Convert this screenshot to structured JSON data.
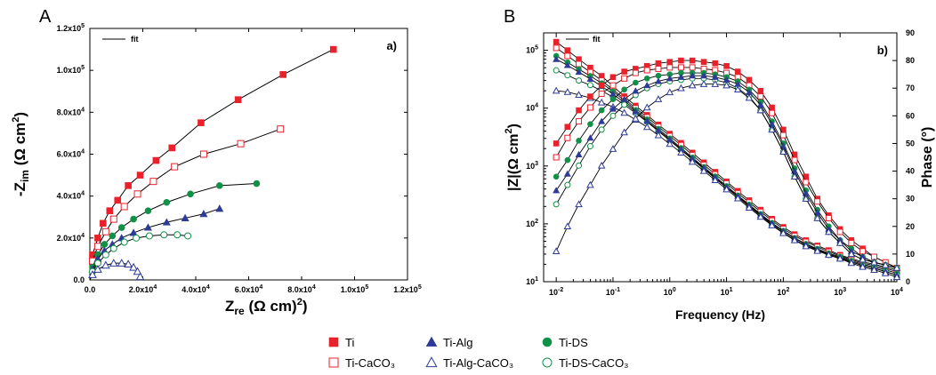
{
  "panel_letters": [
    "A",
    "B"
  ],
  "legend": {
    "items": [
      {
        "label": "Ti",
        "marker": "square",
        "filled": true,
        "color": "#e8212b"
      },
      {
        "label": "Ti-Alg",
        "marker": "triangle",
        "filled": true,
        "color": "#2e3a97"
      },
      {
        "label": "Ti-DS",
        "marker": "circle",
        "filled": true,
        "color": "#119148"
      },
      {
        "label": "Ti-CaCO₃",
        "marker": "square",
        "filled": false,
        "color": "#e8212b"
      },
      {
        "label": "Ti-Alg-CaCO₃",
        "marker": "triangle",
        "filled": false,
        "color": "#2e3a97"
      },
      {
        "label": "Ti-DS-CaCO₃",
        "marker": "circle",
        "filled": false,
        "color": "#119148"
      }
    ]
  },
  "chart_data": [
    {
      "type": "scatter",
      "panel_label": "a)",
      "fit_label": "fit",
      "xlabel": "Zre (Ω cm²)",
      "ylabel": "-Zim (Ω cm²)",
      "xlim": [
        0,
        120000
      ],
      "ylim": [
        0,
        120000
      ],
      "x_ticks": [
        "0.0",
        "2.0x10⁴",
        "4.0x10⁴",
        "6.0x10⁴",
        "8.0x10⁴",
        "1.0x10⁵",
        "1.2x10⁵"
      ],
      "y_ticks": [
        "0.0",
        "2.0x10⁴",
        "4.0x10⁴",
        "6.0x10⁴",
        "8.0x10⁴",
        "1.0x10⁵",
        "1.2x10⁵"
      ],
      "series": [
        {
          "name": "Ti",
          "x": [
            1000,
            3000,
            5000,
            7500,
            10500,
            14500,
            19000,
            25000,
            31000,
            42000,
            56000,
            73000,
            92000
          ],
          "y": [
            12000,
            20000,
            27000,
            33000,
            38000,
            45000,
            50000,
            57000,
            63000,
            75000,
            86000,
            98000,
            110000
          ]
        },
        {
          "name": "Ti-CaCO₃",
          "x": [
            1000,
            3000,
            6000,
            9000,
            13000,
            18000,
            24000,
            32000,
            43000,
            57000,
            72000
          ],
          "y": [
            9000,
            16000,
            23000,
            29000,
            35000,
            41000,
            47000,
            54000,
            60000,
            65000,
            72000
          ]
        },
        {
          "name": "Ti-DS",
          "x": [
            1000,
            3000,
            5500,
            8500,
            12000,
            16500,
            22000,
            29000,
            38000,
            49000,
            63000
          ],
          "y": [
            6000,
            12000,
            17000,
            21000,
            25000,
            29000,
            33000,
            37000,
            41000,
            45000,
            46000
          ]
        },
        {
          "name": "Ti-Alg",
          "x": [
            1000,
            3000,
            5500,
            8500,
            12000,
            16500,
            22000,
            29000,
            36000,
            43000,
            49000
          ],
          "y": [
            5000,
            10000,
            14000,
            17000,
            20000,
            22500,
            25000,
            27500,
            29500,
            31500,
            34000
          ]
        },
        {
          "name": "Ti-DS-CaCO₃",
          "x": [
            1000,
            3000,
            6000,
            9000,
            13000,
            17500,
            22500,
            28000,
            33000,
            37000
          ],
          "y": [
            4000,
            8000,
            12000,
            15000,
            18000,
            20000,
            21000,
            21500,
            21500,
            21000
          ]
        },
        {
          "name": "Ti-Alg-CaCO₃",
          "x": [
            1000,
            3000,
            6000,
            9000,
            12000,
            14500,
            16500,
            18000,
            19000
          ],
          "y": [
            2500,
            5000,
            7000,
            8000,
            8000,
            7500,
            6000,
            4000,
            1500
          ]
        }
      ]
    },
    {
      "type": "scatter",
      "panel_label": "b)",
      "fit_label": "fit",
      "xlabel": "Frequency (Hz)",
      "ylabel": "|Z|(Ω cm²)",
      "ylabel_right": "Phase (°)",
      "x_scale": "log",
      "y_scale": "log",
      "xlim": [
        0.006,
        10000
      ],
      "ylim": [
        10,
        200000
      ],
      "ylim_right": [
        0,
        90
      ],
      "x_ticks": [
        "10⁻²",
        "10⁻¹",
        "10⁰",
        "10¹",
        "10²",
        "10³",
        "10⁴"
      ],
      "y_ticks": [
        "10¹",
        "10²",
        "10³",
        "10⁴",
        "10⁵"
      ],
      "y_ticks_right": [
        "0",
        "10",
        "20",
        "30",
        "40",
        "50",
        "60",
        "70",
        "80",
        "90"
      ],
      "frequency": [
        0.01,
        0.0158,
        0.025,
        0.0398,
        0.063,
        0.1,
        0.158,
        0.25,
        0.398,
        0.63,
        1,
        1.58,
        2.5,
        3.98,
        6.3,
        10,
        15.8,
        25,
        39.8,
        63,
        100,
        158,
        250,
        398,
        630,
        1000,
        1580,
        2500,
        3980,
        6300,
        10000
      ],
      "modulus_series": [
        {
          "name": "Ti",
          "values": [
            140000,
            100000,
            70000,
            50000,
            36000,
            24000,
            16000,
            11000,
            7600,
            5200,
            3600,
            2500,
            1700,
            1150,
            790,
            540,
            370,
            255,
            175,
            122,
            88,
            66,
            52,
            42,
            35,
            29,
            25,
            22,
            20,
            18,
            16
          ]
        },
        {
          "name": "Ti-CaCO₃",
          "values": [
            110000,
            80000,
            58000,
            42000,
            30000,
            21000,
            14500,
            10000,
            7000,
            4800,
            3300,
            2300,
            1550,
            1050,
            720,
            500,
            340,
            235,
            162,
            114,
            82,
            62,
            49,
            40,
            33,
            28,
            24,
            21,
            19,
            17,
            15
          ]
        },
        {
          "name": "Ti-DS",
          "values": [
            80000,
            62000,
            47000,
            36000,
            27000,
            19500,
            13500,
            9300,
            6400,
            4400,
            3000,
            2050,
            1400,
            960,
            660,
            450,
            310,
            215,
            148,
            104,
            76,
            57,
            45,
            37,
            31,
            27,
            23,
            20,
            18,
            16,
            14
          ]
        },
        {
          "name": "Ti-DS-CaCO₃",
          "values": [
            45000,
            37000,
            30000,
            25000,
            20000,
            15500,
            11500,
            8200,
            5800,
            4000,
            2750,
            1900,
            1300,
            890,
            610,
            420,
            290,
            200,
            138,
            97,
            70,
            53,
            42,
            35,
            29,
            25,
            22,
            19,
            17,
            15,
            13
          ]
        },
        {
          "name": "Ti-Alg",
          "values": [
            70000,
            55000,
            42000,
            32000,
            24000,
            17500,
            12500,
            8700,
            6000,
            4150,
            2850,
            1950,
            1340,
            920,
            630,
            430,
            300,
            207,
            143,
            101,
            74,
            56,
            44,
            36,
            30,
            26,
            22,
            19,
            17,
            15,
            13
          ]
        },
        {
          "name": "Ti-Alg-CaCO₃",
          "values": [
            20000,
            19000,
            17000,
            15000,
            12500,
            10500,
            8300,
            6300,
            4700,
            3400,
            2400,
            1700,
            1180,
            820,
            570,
            395,
            275,
            190,
            132,
            94,
            69,
            52,
            41,
            34,
            29,
            25,
            21,
            18,
            16,
            14,
            12
          ]
        }
      ],
      "phase_series": [
        {
          "name": "Ti",
          "values": [
            50,
            56,
            62,
            67,
            71,
            74,
            76,
            77,
            78,
            79,
            79.5,
            80,
            80,
            79.5,
            79,
            78,
            76,
            73,
            69,
            63,
            55,
            46,
            38,
            30,
            24,
            19,
            15,
            12,
            9,
            7,
            5
          ]
        },
        {
          "name": "Ti-CaCO₃",
          "values": [
            45,
            52,
            58,
            63,
            68,
            71,
            73.5,
            75.5,
            76.5,
            77,
            77.5,
            77.5,
            77.5,
            77,
            76.5,
            75.5,
            74,
            71,
            67,
            61,
            53,
            44,
            36,
            29,
            23,
            18,
            14,
            11,
            9,
            7,
            5
          ]
        },
        {
          "name": "Ti-DS",
          "values": [
            38,
            44,
            51,
            57,
            62,
            66,
            69.5,
            72,
            73.5,
            74.5,
            75,
            75.5,
            75.5,
            75.5,
            75,
            74,
            72.5,
            69.5,
            65,
            58,
            50,
            41,
            33,
            26,
            20,
            15,
            12,
            9,
            7,
            6,
            5
          ]
        },
        {
          "name": "Ti-DS-CaCO₃",
          "values": [
            28,
            35,
            42,
            49,
            55,
            60,
            64,
            67.5,
            70,
            71.5,
            72.5,
            73,
            73.5,
            73.5,
            73,
            72,
            70,
            67,
            62,
            55,
            47,
            38,
            30,
            23,
            18,
            14,
            10,
            8,
            7,
            6,
            5
          ]
        },
        {
          "name": "Ti-Alg",
          "values": [
            33,
            39,
            46,
            52,
            58,
            62.5,
            66,
            69,
            71,
            72.5,
            73.5,
            74,
            74.5,
            74.5,
            74,
            73,
            71.5,
            68.5,
            64,
            57,
            49,
            40,
            32,
            25,
            19,
            15,
            11,
            9,
            7,
            6,
            5
          ]
        },
        {
          "name": "Ti-Alg-CaCO₃",
          "values": [
            11,
            20,
            28,
            35,
            42,
            48,
            54,
            59,
            63,
            66,
            68.5,
            70,
            71,
            71.5,
            71.5,
            71,
            69.5,
            66.5,
            62,
            55,
            47,
            38,
            30,
            23,
            18,
            14,
            10,
            8,
            7,
            6,
            5
          ]
        }
      ]
    }
  ]
}
